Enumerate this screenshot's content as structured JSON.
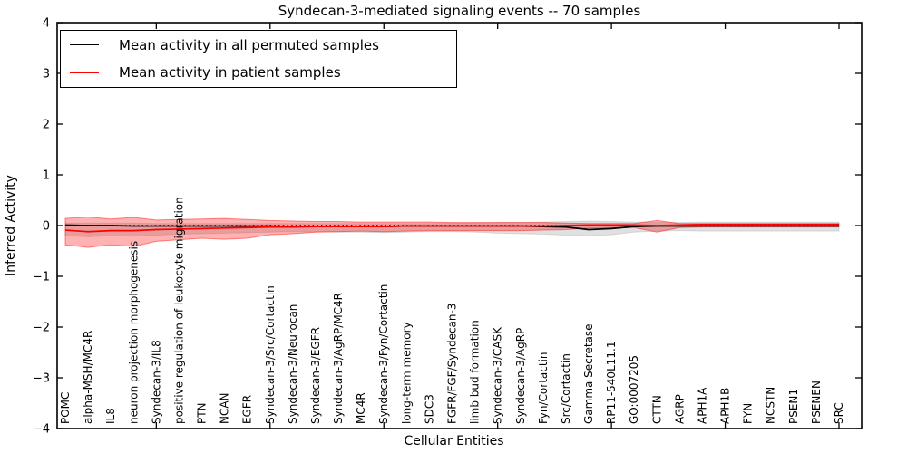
{
  "figure": {
    "title": "Syndecan-3-mediated signaling events -- 70 samples",
    "xlabel": "Cellular Entities",
    "ylabel": "Inferred Activity",
    "background_color": "#ffffff",
    "axis_color": "#000000"
  },
  "legend": {
    "position": "upper left",
    "items": [
      {
        "label": "Mean activity in all permuted samples",
        "color": "#000000"
      },
      {
        "label": "Mean activity in patient samples",
        "color": "#ff0000"
      }
    ]
  },
  "chart_data": {
    "type": "line",
    "title": "Syndecan-3-mediated signaling events -- 70 samples",
    "xlabel": "Cellular Entities",
    "ylabel": "Inferred Activity",
    "ylim": [
      -4,
      4
    ],
    "grid": false,
    "legend_position": "upper left",
    "ytick_values": [
      4,
      3,
      2,
      1,
      0,
      -1,
      -2,
      -3,
      -4
    ],
    "ytick_labels": [
      "4",
      "3",
      "2",
      "1",
      "0",
      "−1",
      "−2",
      "−3",
      "−4"
    ],
    "xtick_indices": [
      4,
      9,
      14,
      19,
      24,
      29,
      34
    ],
    "zero_line": {
      "y": 0,
      "style": "dotted",
      "color": "#000000"
    },
    "categories": [
      "POMC",
      "alpha-MSH/MC4R",
      "IL8",
      "neuron projection morphogenesis",
      "Syndecan-3/IL8",
      "positive regulation of leukocyte migration",
      "PTN",
      "NCAN",
      "EGFR",
      "Syndecan-3/Src/Cortactin",
      "Syndecan-3/Neurocan",
      "Syndecan-3/EGFR",
      "Syndecan-3/AgRP/MC4R",
      "MC4R",
      "Syndecan-3/Fyn/Cortactin",
      "long-term memory",
      "SDC3",
      "FGFR/FGF/Syndecan-3",
      "limb bud formation",
      "Syndecan-3/CASK",
      "Syndecan-3/AgRP",
      "Fyn/Cortactin",
      "Src/Cortactin",
      "Gamma Secretase",
      "RP11-540L11.1",
      "GO:0007205",
      "CTTN",
      "AGRP",
      "APH1A",
      "APH1B",
      "FYN",
      "NCSTN",
      "PSEN1",
      "PSENEN",
      "SRC"
    ],
    "series": [
      {
        "name": "Mean activity in all permuted samples",
        "color": "#000000",
        "values": [
          0.01,
          0.0,
          0.0,
          -0.01,
          -0.01,
          -0.01,
          -0.01,
          -0.01,
          -0.01,
          -0.01,
          -0.02,
          -0.02,
          -0.02,
          -0.02,
          -0.02,
          -0.01,
          -0.01,
          -0.01,
          -0.01,
          -0.01,
          -0.01,
          -0.02,
          -0.03,
          -0.08,
          -0.06,
          -0.02,
          -0.01,
          -0.01,
          -0.01,
          -0.01,
          -0.01,
          -0.01,
          -0.01,
          -0.01,
          -0.01
        ]
      },
      {
        "name": "Mean activity in patient samples",
        "color": "#ff0000",
        "values": [
          -0.09,
          -0.12,
          -0.1,
          -0.1,
          -0.08,
          -0.07,
          -0.06,
          -0.05,
          -0.04,
          -0.03,
          -0.03,
          -0.02,
          -0.02,
          -0.02,
          -0.02,
          -0.01,
          -0.01,
          -0.01,
          -0.01,
          -0.01,
          -0.01,
          -0.01,
          0.0,
          0.01,
          0.01,
          0.01,
          0.0,
          0.01,
          0.02,
          0.02,
          0.02,
          0.02,
          0.02,
          0.02,
          0.02
        ]
      }
    ],
    "bands": [
      {
        "name": "permuted-samples-std-band",
        "fill": "rgba(0,0,0,0.12)",
        "edge": "rgba(0,0,0,0.10)",
        "upper": [
          0.05,
          0.05,
          0.05,
          0.05,
          0.04,
          0.04,
          0.04,
          0.04,
          0.04,
          0.04,
          0.04,
          0.04,
          0.04,
          0.04,
          0.04,
          0.04,
          0.04,
          0.05,
          0.05,
          0.06,
          0.06,
          0.07,
          0.08,
          0.09,
          0.08,
          0.07,
          0.06,
          0.06,
          0.07,
          0.07,
          0.07,
          0.07,
          0.07,
          0.07,
          0.07
        ],
        "lower": [
          -0.2,
          -0.22,
          -0.2,
          -0.21,
          -0.19,
          -0.17,
          -0.16,
          -0.15,
          -0.14,
          -0.13,
          -0.12,
          -0.12,
          -0.13,
          -0.13,
          -0.14,
          -0.13,
          -0.12,
          -0.12,
          -0.13,
          -0.15,
          -0.16,
          -0.17,
          -0.19,
          -0.2,
          -0.18,
          -0.13,
          -0.11,
          -0.1,
          -0.11,
          -0.11,
          -0.11,
          -0.11,
          -0.11,
          -0.11,
          -0.11
        ]
      },
      {
        "name": "patient-samples-std-band",
        "fill": "rgba(255,0,0,0.30)",
        "edge": "rgba(255,0,0,0.45)",
        "upper": [
          0.14,
          0.17,
          0.13,
          0.16,
          0.11,
          0.12,
          0.13,
          0.14,
          0.12,
          0.1,
          0.09,
          0.08,
          0.08,
          0.07,
          0.07,
          0.07,
          0.07,
          0.06,
          0.06,
          0.06,
          0.06,
          0.06,
          0.05,
          0.04,
          0.04,
          0.04,
          0.1,
          0.04,
          0.04,
          0.04,
          0.04,
          0.04,
          0.04,
          0.04,
          0.04
        ],
        "lower": [
          -0.38,
          -0.43,
          -0.38,
          -0.41,
          -0.31,
          -0.28,
          -0.25,
          -0.27,
          -0.25,
          -0.18,
          -0.16,
          -0.13,
          -0.12,
          -0.11,
          -0.12,
          -0.11,
          -0.1,
          -0.1,
          -0.1,
          -0.1,
          -0.1,
          -0.09,
          -0.08,
          -0.05,
          -0.04,
          -0.04,
          -0.13,
          -0.04,
          -0.03,
          -0.03,
          -0.03,
          -0.03,
          -0.03,
          -0.03,
          -0.03
        ]
      }
    ]
  }
}
